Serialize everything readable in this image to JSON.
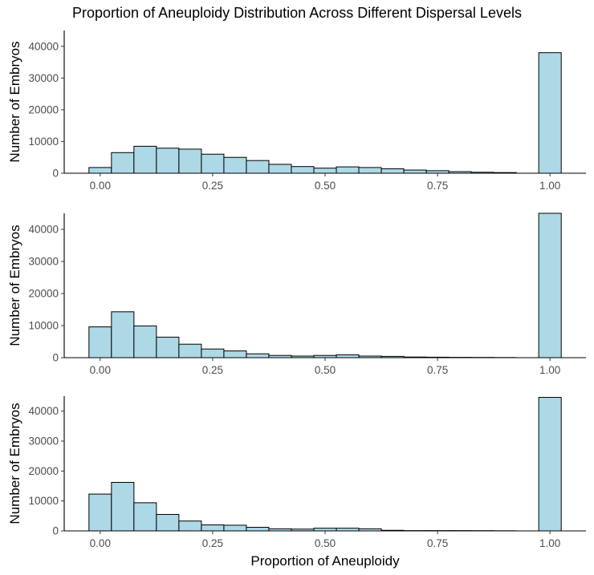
{
  "chart_data": {
    "type": "bar",
    "title": "Proportion of Aneuploidy Distribution Across Different Dispersal Levels",
    "xlabel": "Proportion of Aneuploidy",
    "ylabel": "Number of Embryos",
    "xlim": [
      -0.08,
      1.08
    ],
    "xticks": [
      0,
      0.25,
      0.5,
      0.75,
      1
    ],
    "xtick_labels": [
      "0.00",
      "0.25",
      "0.50",
      "0.75",
      "1.00"
    ],
    "yticks": [
      0,
      10000,
      20000,
      30000,
      40000
    ],
    "ytick_labels": [
      "0",
      "10000",
      "20000",
      "30000",
      "40000"
    ],
    "bin_width": 0.05,
    "bin_centers": [
      0,
      0.05,
      0.1,
      0.15,
      0.2,
      0.25,
      0.3,
      0.35,
      0.4,
      0.45,
      0.5,
      0.55,
      0.6,
      0.65,
      0.7,
      0.75,
      0.8,
      0.85,
      0.9,
      0.95,
      1.0
    ],
    "grid": false,
    "panels": [
      {
        "ylim": [
          0,
          45000
        ],
        "values": [
          1800,
          6500,
          8500,
          7900,
          7600,
          6000,
          5000,
          4000,
          2800,
          2100,
          1600,
          2000,
          1800,
          1400,
          1000,
          800,
          500,
          300,
          200,
          0,
          38000
        ]
      },
      {
        "ylim": [
          0,
          45000
        ],
        "values": [
          9600,
          14300,
          9900,
          6400,
          4200,
          2700,
          2100,
          1200,
          700,
          500,
          700,
          900,
          500,
          400,
          200,
          150,
          100,
          80,
          50,
          0,
          45000
        ]
      },
      {
        "ylim": [
          0,
          45000
        ],
        "values": [
          12300,
          16200,
          9400,
          5500,
          3300,
          2000,
          1900,
          1200,
          700,
          600,
          900,
          900,
          700,
          200,
          100,
          100,
          100,
          80,
          50,
          0,
          44600
        ]
      }
    ]
  }
}
